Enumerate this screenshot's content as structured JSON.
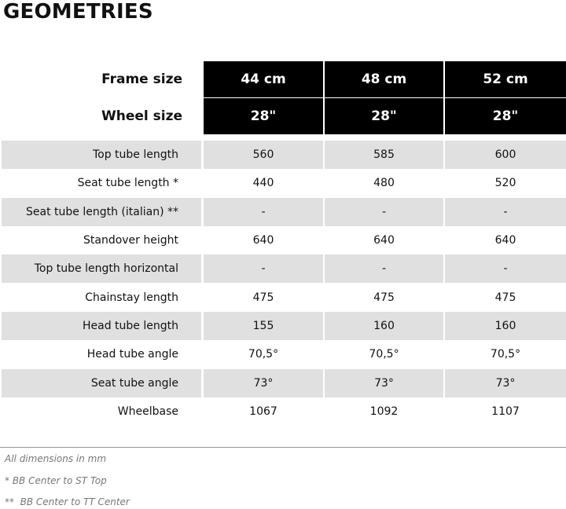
{
  "title": "GEOMETRIES",
  "header": {
    "frame_label": "Frame size",
    "wheel_label": "Wheel size",
    "frame_sizes": [
      "44 cm",
      "48 cm",
      "52 cm"
    ],
    "wheel_sizes": [
      "28\"",
      "28\"",
      "28\""
    ]
  },
  "rows": [
    {
      "label": "Top tube length",
      "values": [
        "560",
        "585",
        "600"
      ]
    },
    {
      "label": "Seat tube length *",
      "values": [
        "440",
        "480",
        "520"
      ]
    },
    {
      "label": "Seat tube length (italian) **",
      "values": [
        "-",
        "-",
        "-"
      ]
    },
    {
      "label": "Standover height",
      "values": [
        "640",
        "640",
        "640"
      ]
    },
    {
      "label": "Top tube length horizontal",
      "values": [
        "-",
        "-",
        "-"
      ]
    },
    {
      "label": "Chainstay length",
      "values": [
        "475",
        "475",
        "475"
      ]
    },
    {
      "label": "Head tube length",
      "values": [
        "155",
        "160",
        "160"
      ]
    },
    {
      "label": "Head tube angle",
      "values": [
        "70,5°",
        "70,5°",
        "70,5°"
      ]
    },
    {
      "label": "Seat tube angle",
      "values": [
        "73°",
        "73°",
        "73°"
      ]
    },
    {
      "label": "Wheelbase",
      "values": [
        "1067",
        "1092",
        "1107"
      ]
    }
  ],
  "footnotes": [
    "All dimensions in mm",
    "* BB Center to ST Top",
    "**  BB Center to TT Center"
  ]
}
